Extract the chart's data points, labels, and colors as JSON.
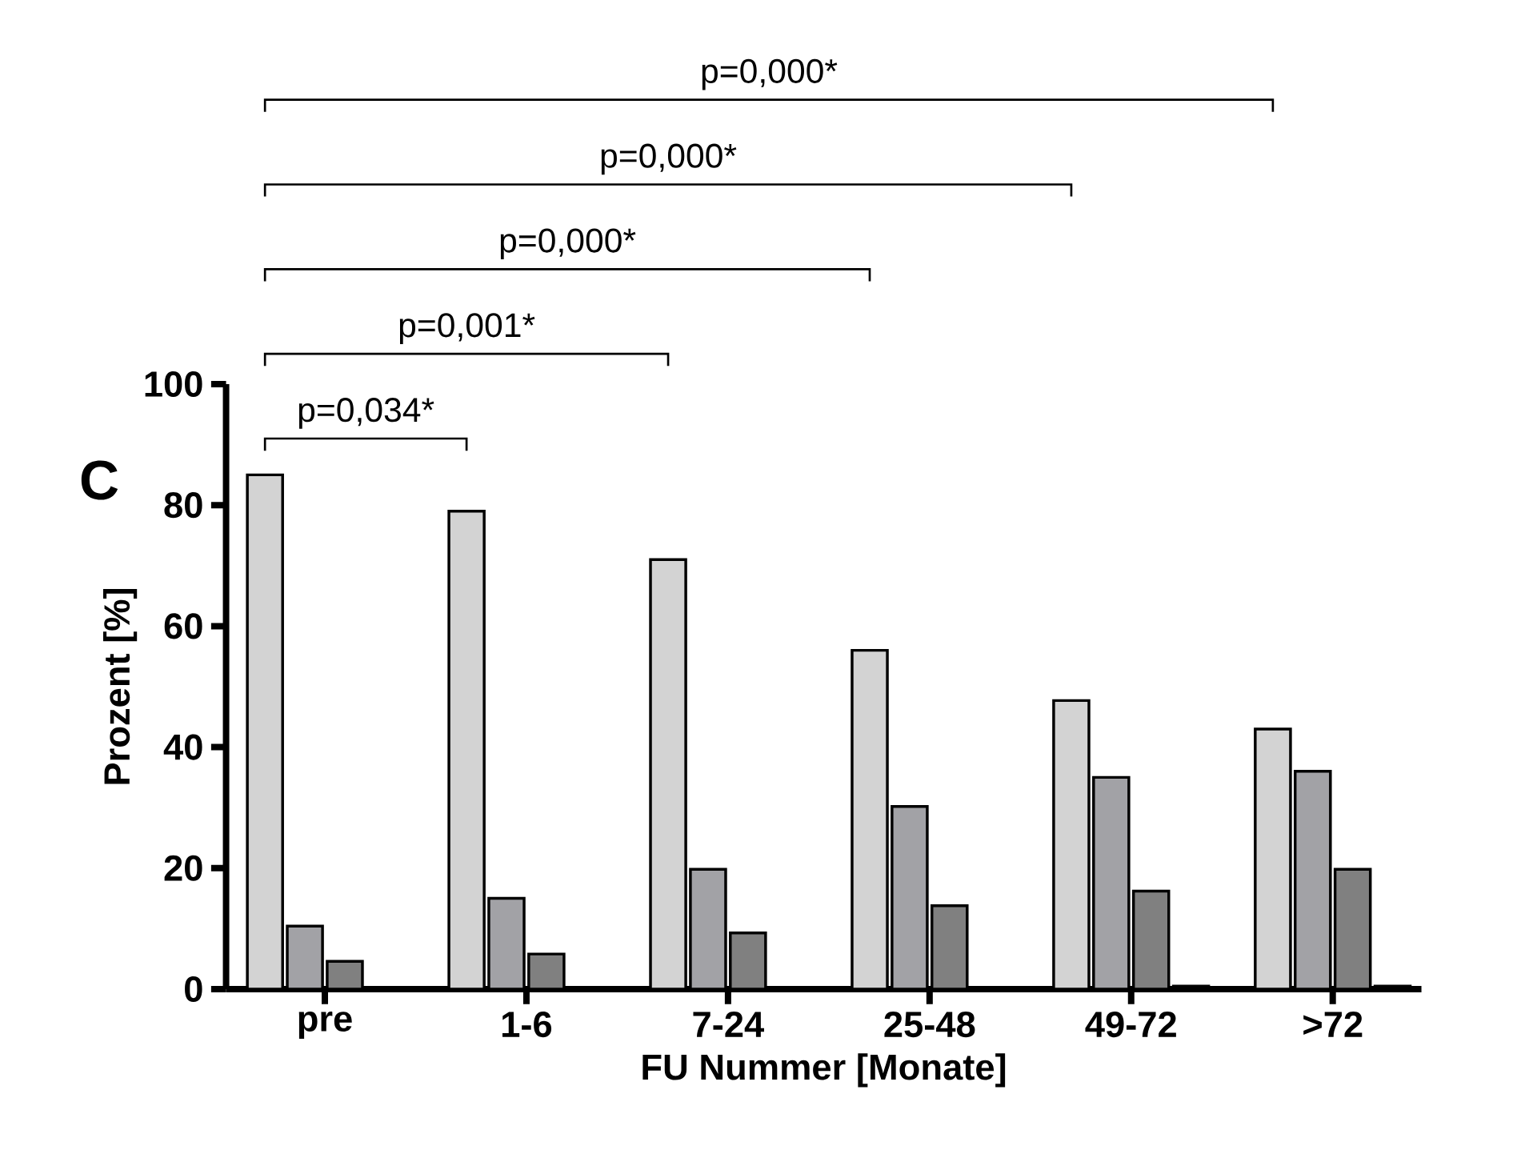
{
  "chart_data": {
    "type": "bar",
    "xlabel": "FU Nummer [Monate]",
    "ylabel": "Prozent [%]",
    "categories": [
      "pre",
      "1-6",
      "7-24",
      "25-48",
      "49-72",
      ">72"
    ],
    "series": [
      {
        "color": "#d3d3d3",
        "values": [
          85,
          79,
          71,
          56,
          47.7,
          43
        ]
      },
      {
        "color": "#a2a2a6",
        "values": [
          10.4,
          15,
          19.8,
          30.2,
          35,
          36
        ]
      },
      {
        "color": "#808080",
        "values": [
          4.6,
          5.8,
          9.3,
          13.8,
          16.2,
          19.8
        ]
      },
      {
        "color": "#000000",
        "values": [
          0,
          0,
          0,
          0,
          0.5,
          0.5
        ]
      }
    ],
    "ylim": [
      0,
      100
    ],
    "yticks": [
      0,
      20,
      40,
      60,
      80,
      100
    ],
    "grid": false,
    "legend": false,
    "annotations": [
      "C",
      "p=0,034*",
      "p=0,001*",
      "p=0,000*",
      "p=0,000*",
      "p=0,000*"
    ]
  }
}
